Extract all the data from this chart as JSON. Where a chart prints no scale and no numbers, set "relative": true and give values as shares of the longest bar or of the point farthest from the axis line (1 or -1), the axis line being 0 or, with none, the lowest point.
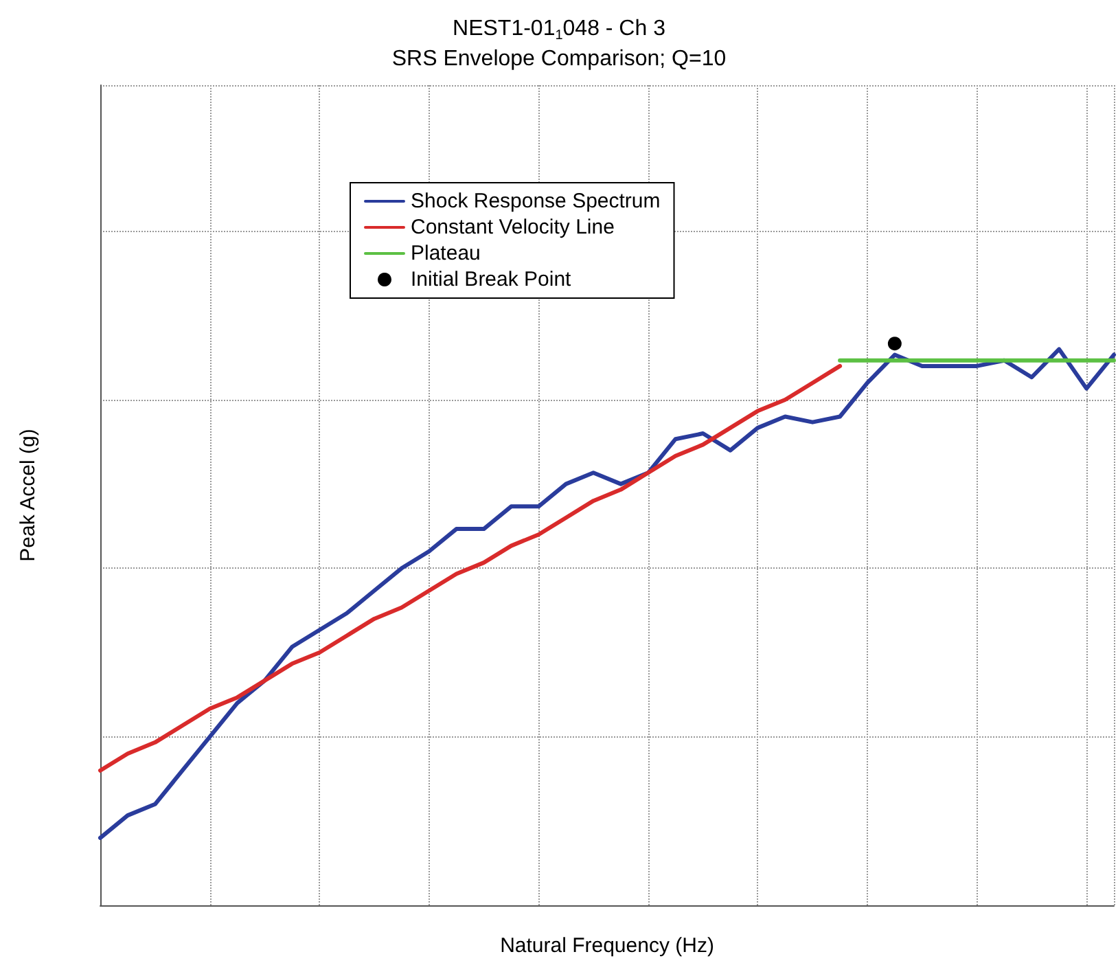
{
  "chart_data": {
    "type": "line",
    "title": "NEST1-01$_{1}$048 - Ch 3",
    "subtitle": "SRS Envelope Comparison; Q=10",
    "xlabel": "Natural Frequency (Hz)",
    "ylabel": "Peak Accel (g)",
    "relative": true,
    "grid": true,
    "legend": "top left",
    "categories": [
      null,
      null,
      null,
      null,
      null,
      null,
      null,
      null,
      null,
      null,
      null,
      null,
      null,
      null,
      null,
      null,
      null,
      null,
      null,
      null,
      null,
      null,
      null,
      null,
      null,
      null,
      null,
      null,
      null,
      null,
      null,
      null,
      null,
      null,
      null,
      null,
      null,
      null
    ],
    "series": [
      {
        "name": "Shock Response Spectrum",
        "color": "#2a3c9c",
        "values": [
          0.12,
          0.16,
          0.18,
          0.24,
          0.3,
          0.36,
          0.4,
          0.46,
          0.49,
          0.52,
          0.56,
          0.6,
          0.63,
          0.67,
          0.67,
          0.71,
          0.71,
          0.75,
          0.77,
          0.75,
          0.77,
          0.83,
          0.84,
          0.81,
          0.85,
          0.87,
          0.86,
          0.87,
          0.93,
          0.98,
          0.96,
          0.96,
          0.96,
          0.97,
          0.94,
          0.99,
          0.92,
          0.98
        ]
      },
      {
        "name": "Constant Velocity Line",
        "color": "#d92b2b",
        "values": [
          0.24,
          0.27,
          0.29,
          0.32,
          0.35,
          0.37,
          0.4,
          0.43,
          0.45,
          0.48,
          0.51,
          0.53,
          0.56,
          0.59,
          0.61,
          0.64,
          0.66,
          0.69,
          0.72,
          0.74,
          0.77,
          0.8,
          0.82,
          0.85,
          0.88,
          0.9,
          0.93,
          0.96,
          null,
          null,
          null,
          null,
          null,
          null,
          null,
          null,
          null,
          null
        ]
      },
      {
        "name": "Plateau",
        "color": "#5cc043",
        "values": [
          null,
          null,
          null,
          null,
          null,
          null,
          null,
          null,
          null,
          null,
          null,
          null,
          null,
          null,
          null,
          null,
          null,
          null,
          null,
          null,
          null,
          null,
          null,
          null,
          null,
          null,
          null,
          0.97,
          0.97,
          0.97,
          0.97,
          0.97,
          0.97,
          0.97,
          0.97,
          0.97,
          0.97,
          0.97
        ]
      },
      {
        "name": "Initial Break Point",
        "marker": "circle",
        "color": "#000000",
        "values": [
          null,
          null,
          null,
          null,
          null,
          null,
          null,
          null,
          null,
          null,
          null,
          null,
          null,
          null,
          null,
          null,
          null,
          null,
          null,
          null,
          null,
          null,
          null,
          null,
          null,
          null,
          null,
          null,
          null,
          1.0,
          null,
          null,
          null,
          null,
          null,
          null,
          null,
          null
        ]
      }
    ]
  }
}
